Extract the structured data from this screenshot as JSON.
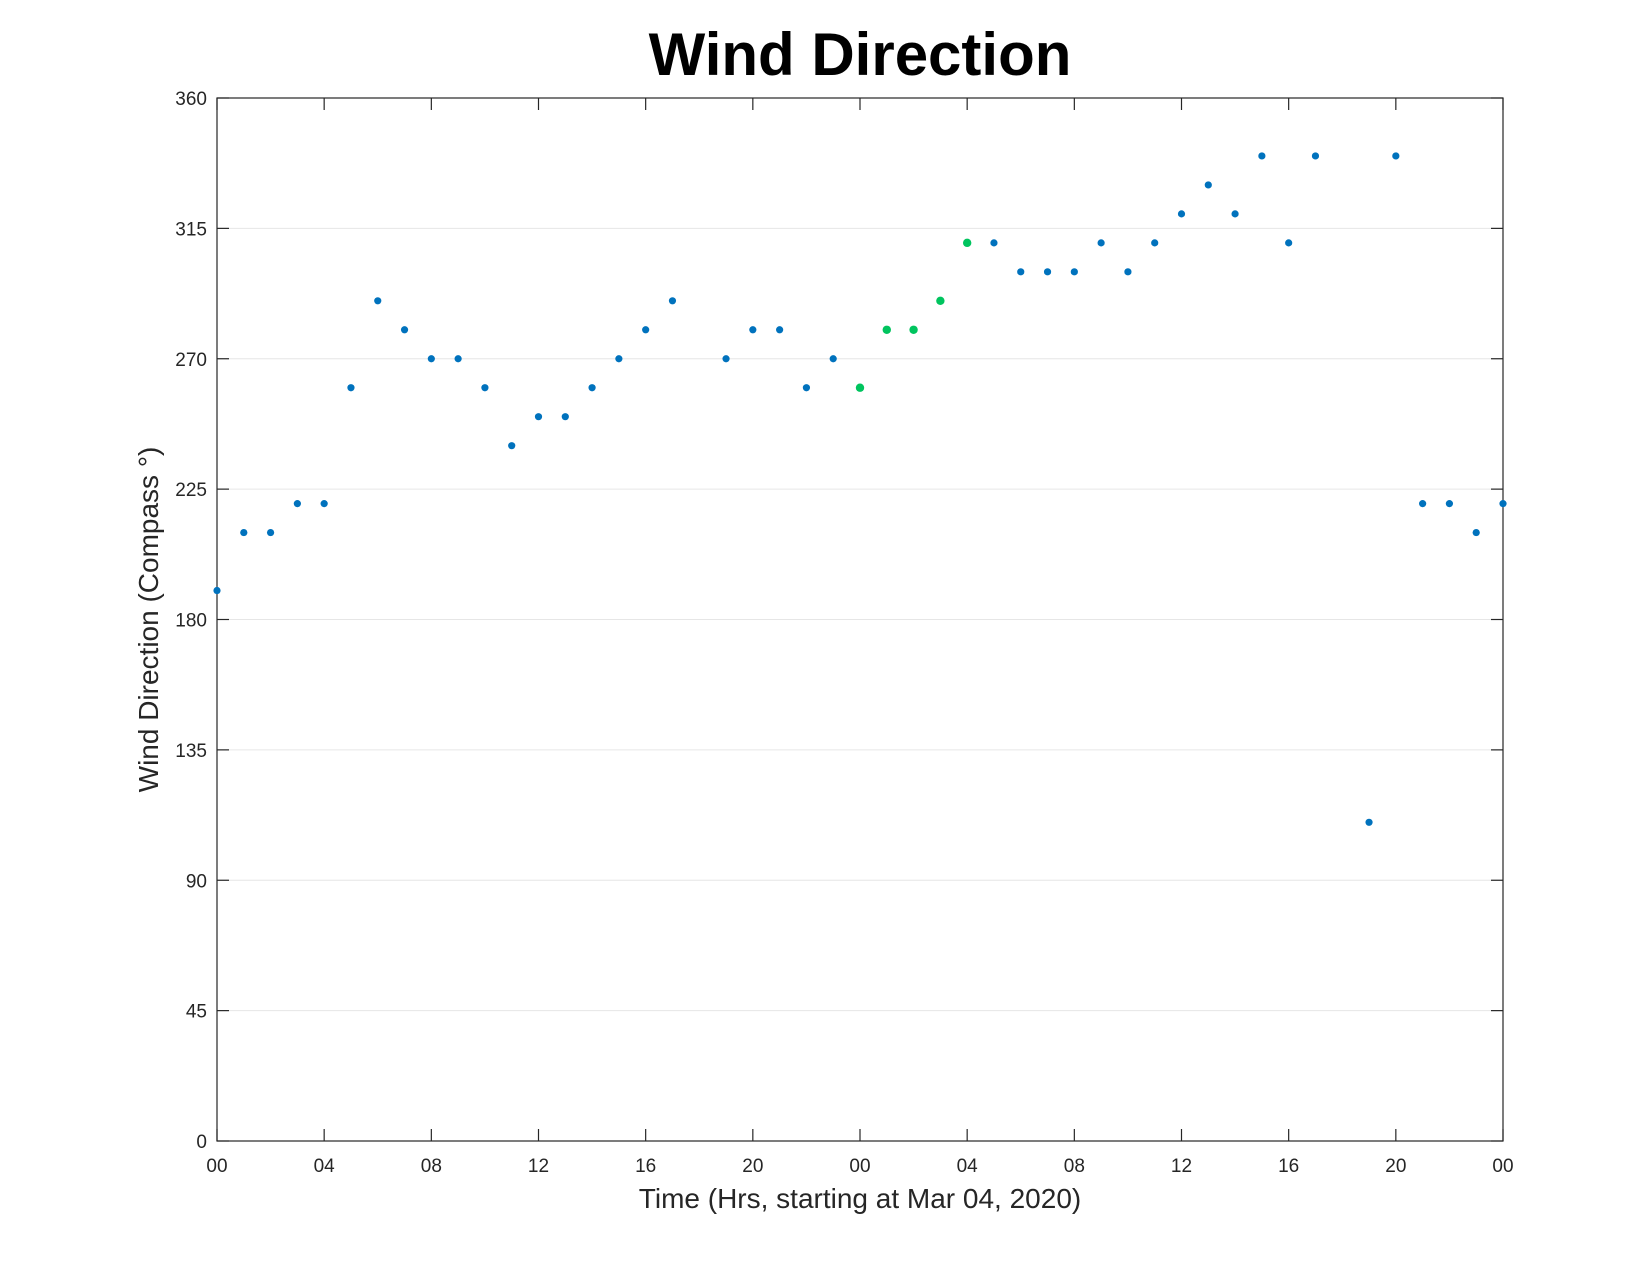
{
  "chart_data": {
    "type": "scatter",
    "title": "Wind Direction",
    "xlabel": "Time (Hrs, starting at Mar 04, 2020)",
    "ylabel": "Wind Direction (Compass °)",
    "x_unit": "hours",
    "xlim": [
      0,
      48
    ],
    "ylim": [
      0,
      360
    ],
    "x_ticks": [
      0,
      4,
      8,
      12,
      16,
      20,
      24,
      28,
      32,
      36,
      40,
      44,
      48
    ],
    "x_tick_labels": [
      "00",
      "04",
      "08",
      "12",
      "16",
      "20",
      "00",
      "04",
      "08",
      "12",
      "16",
      "20",
      "00"
    ],
    "y_ticks": [
      0,
      45,
      90,
      135,
      180,
      225,
      270,
      315,
      360
    ],
    "grid": "horizontal",
    "colors": {
      "primary": "#0072BD",
      "highlight": "#00C45E"
    },
    "series": [
      {
        "color": "#0072BD",
        "x": [
          0,
          1,
          2,
          3,
          4,
          5,
          6,
          7,
          8,
          9,
          10,
          11,
          12,
          13,
          14,
          15,
          16,
          17,
          19,
          20,
          21,
          22,
          23,
          29,
          30,
          31,
          32,
          33,
          34,
          35,
          36,
          37,
          38,
          39,
          40,
          41,
          43,
          44,
          45,
          46,
          47,
          48
        ],
        "y": [
          190,
          210,
          210,
          220,
          220,
          260,
          290,
          280,
          270,
          270,
          260,
          240,
          250,
          250,
          260,
          270,
          280,
          290,
          270,
          280,
          280,
          260,
          270,
          310,
          300,
          300,
          300,
          310,
          300,
          310,
          320,
          330,
          320,
          340,
          310,
          340,
          110,
          340,
          220,
          220,
          210,
          220
        ]
      },
      {
        "color": "#00C45E",
        "x": [
          24,
          25,
          26,
          27,
          28
        ],
        "y": [
          260,
          280,
          280,
          290,
          310
        ]
      }
    ]
  }
}
